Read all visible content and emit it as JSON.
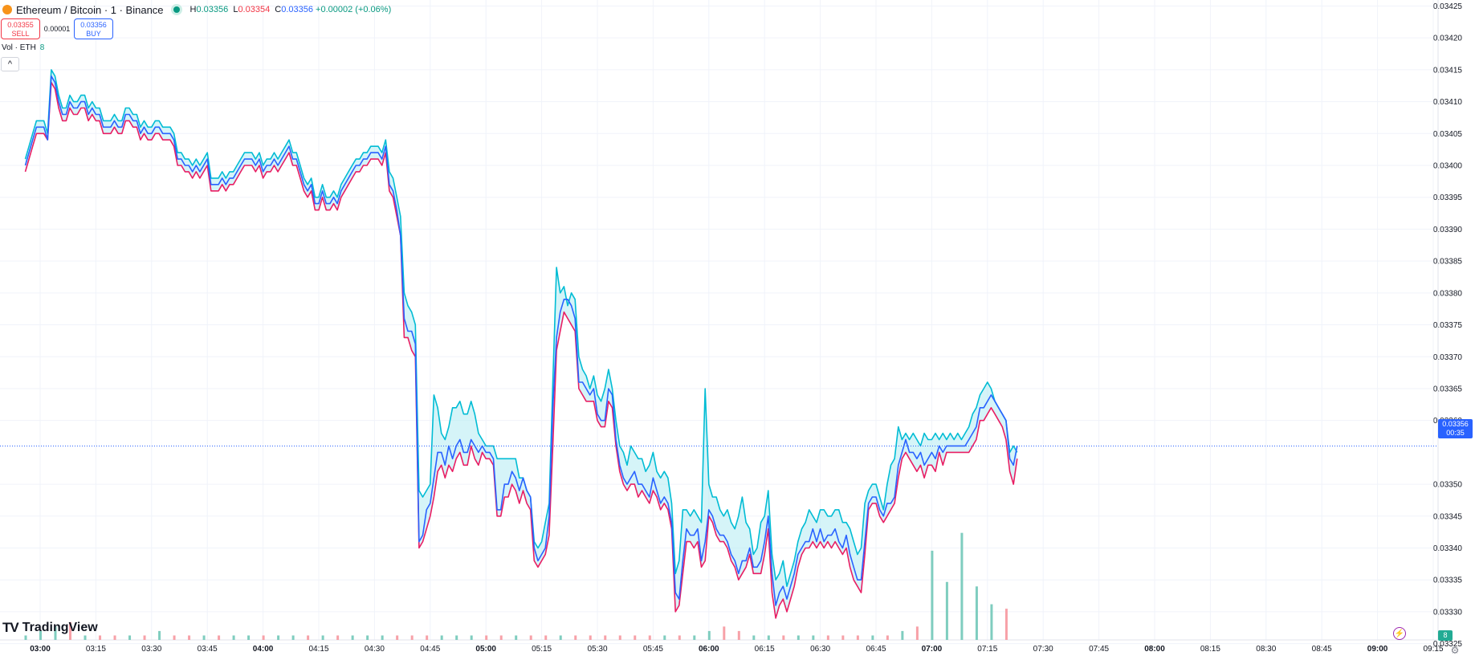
{
  "header": {
    "title": "Ethereum / Bitcoin · 1 · Binance",
    "ohlc": {
      "h_label": "H",
      "h_value": "0.03356",
      "l_label": "L",
      "l_value": "0.03354",
      "c_label": "C",
      "c_value": "0.03356",
      "change": "+0.00002 (+0.06%)"
    }
  },
  "trade": {
    "sell_price": "0.03355",
    "sell_label": "SELL",
    "spread": "0.00001",
    "buy_price": "0.03356",
    "buy_label": "BUY"
  },
  "volume_legend": {
    "label": "Vol · ETH",
    "value": "8"
  },
  "collapse_icon": "^",
  "logo_text": "TradingView",
  "price_tag": {
    "price": "0.03356",
    "countdown": "00:35"
  },
  "volume_tag": "8",
  "colors": {
    "up": "#089981",
    "down": "#f23645",
    "blue": "#2962ff",
    "cyan": "#00bcd4",
    "pink": "#e91e63",
    "vol_up": "#7fcdbf",
    "vol_down": "#f7a1a8"
  },
  "chart_data": {
    "type": "line",
    "series": [
      {
        "values": [
          0.034,
          0.03402,
          0.03404,
          0.03406,
          0.03406,
          0.03406,
          0.03404,
          0.03414,
          0.03413,
          0.0341,
          0.03408,
          0.03408,
          0.0341,
          0.03409,
          0.03409,
          0.0341,
          0.0341,
          0.03408,
          0.03409,
          0.03408,
          0.03408,
          0.03406,
          0.03406,
          0.03406,
          0.03407,
          0.03406,
          0.03406,
          0.03408,
          0.03408,
          0.03407,
          0.03407,
          0.03405,
          0.03406,
          0.03405,
          0.03405,
          0.03406,
          0.03406,
          0.03405,
          0.03405,
          0.03405,
          0.03404,
          0.03401,
          0.03401,
          0.034,
          0.034,
          0.03399,
          0.034,
          0.03399,
          0.034,
          0.03401,
          0.03397,
          0.03397,
          0.03397,
          0.03398,
          0.03397,
          0.03398,
          0.03398,
          0.03399,
          0.034,
          0.03401,
          0.03401,
          0.03401,
          0.034,
          0.03401,
          0.03399,
          0.034,
          0.034,
          0.03401,
          0.034,
          0.03401,
          0.03402,
          0.03403,
          0.03401,
          0.03401,
          0.03399,
          0.03397,
          0.03396,
          0.03397,
          0.03394,
          0.03394,
          0.03396,
          0.03394,
          0.03394,
          0.03395,
          0.03394,
          0.03396,
          0.03397,
          0.03398,
          0.03399,
          0.034,
          0.034,
          0.03401,
          0.03401,
          0.03402,
          0.03402,
          0.03402,
          0.03401,
          0.03403,
          0.03397,
          0.03396,
          0.03393,
          0.03389,
          0.03376,
          0.03374,
          0.03374,
          0.03372,
          0.03341,
          0.03342,
          0.03346,
          0.03347,
          0.03351,
          0.03355,
          0.03355,
          0.03353,
          0.03356,
          0.03354,
          0.03356,
          0.03357,
          0.03355,
          0.03355,
          0.03357,
          0.03356,
          0.03355,
          0.03356,
          0.03355,
          0.03355,
          0.03354,
          0.03346,
          0.03346,
          0.0335,
          0.0335,
          0.03352,
          0.03351,
          0.03349,
          0.03351,
          0.03349,
          0.03348,
          0.0334,
          0.03338,
          0.03339,
          0.0334,
          0.03345,
          0.03362,
          0.03373,
          0.03377,
          0.03379,
          0.03379,
          0.03378,
          0.03376,
          0.03366,
          0.03366,
          0.03365,
          0.03364,
          0.03365,
          0.03361,
          0.0336,
          0.0336,
          0.03365,
          0.03364,
          0.03357,
          0.03353,
          0.03351,
          0.0335,
          0.03351,
          0.03352,
          0.0335,
          0.0335,
          0.03349,
          0.03348,
          0.03351,
          0.03349,
          0.03347,
          0.03348,
          0.03347,
          0.03344,
          0.03333,
          0.03332,
          0.03338,
          0.03343,
          0.03342,
          0.03342,
          0.03343,
          0.03338,
          0.03341,
          0.03346,
          0.03345,
          0.03343,
          0.03342,
          0.03342,
          0.03341,
          0.03339,
          0.03338,
          0.03336,
          0.03338,
          0.03338,
          0.0334,
          0.03337,
          0.03337,
          0.03338,
          0.03341,
          0.03345,
          0.03336,
          0.03331,
          0.03333,
          0.03334,
          0.03332,
          0.03334,
          0.03336,
          0.03339,
          0.0334,
          0.03341,
          0.03341,
          0.03343,
          0.03341,
          0.03343,
          0.03341,
          0.03342,
          0.03342,
          0.03343,
          0.03341,
          0.0334,
          0.03342,
          0.03339,
          0.03337,
          0.03335,
          0.03335,
          0.03341,
          0.03347,
          0.03348,
          0.03348,
          0.03346,
          0.03345,
          0.03347,
          0.03347,
          0.03348,
          0.03353,
          0.03355,
          0.03357,
          0.03355,
          0.03355,
          0.03354,
          0.03355,
          0.03353,
          0.03354,
          0.03355,
          0.03354,
          0.03356,
          0.03355,
          0.03356,
          0.03356,
          0.03356,
          0.03356,
          0.03356,
          0.03356,
          0.03357,
          0.03358,
          0.03359,
          0.03362,
          0.03362,
          0.03363,
          0.03364,
          0.03363,
          0.03362,
          0.03361,
          0.0336,
          0.03354,
          0.03353,
          0.03356
        ],
        "color": "#2962ff"
      },
      {
        "values": [
          0.03401,
          0.03403,
          0.03405,
          0.03407,
          0.03407,
          0.03407,
          0.03405,
          0.03415,
          0.03414,
          0.03411,
          0.03409,
          0.03409,
          0.03411,
          0.0341,
          0.0341,
          0.03411,
          0.03411,
          0.03409,
          0.0341,
          0.03409,
          0.03409,
          0.03407,
          0.03407,
          0.03407,
          0.03408,
          0.03407,
          0.03407,
          0.03409,
          0.03409,
          0.03408,
          0.03408,
          0.03406,
          0.03407,
          0.03406,
          0.03406,
          0.03407,
          0.03407,
          0.03406,
          0.03406,
          0.03406,
          0.03405,
          0.03402,
          0.03402,
          0.03401,
          0.03401,
          0.034,
          0.03401,
          0.034,
          0.03401,
          0.03402,
          0.03398,
          0.03398,
          0.03398,
          0.03399,
          0.03398,
          0.03399,
          0.03399,
          0.034,
          0.03401,
          0.03402,
          0.03402,
          0.03402,
          0.03401,
          0.03402,
          0.034,
          0.03401,
          0.03401,
          0.03402,
          0.03401,
          0.03402,
          0.03403,
          0.03404,
          0.03402,
          0.03402,
          0.034,
          0.03398,
          0.03397,
          0.03398,
          0.03395,
          0.03395,
          0.03397,
          0.03395,
          0.03395,
          0.03396,
          0.03395,
          0.03397,
          0.03398,
          0.03399,
          0.034,
          0.03401,
          0.03401,
          0.03402,
          0.03402,
          0.03403,
          0.03403,
          0.03403,
          0.03402,
          0.03404,
          0.03399,
          0.03398,
          0.03395,
          0.03392,
          0.0338,
          0.03378,
          0.03377,
          0.03375,
          0.03349,
          0.03348,
          0.03349,
          0.0335,
          0.03364,
          0.03362,
          0.03358,
          0.03357,
          0.03359,
          0.03362,
          0.03362,
          0.03363,
          0.03361,
          0.03361,
          0.03363,
          0.03361,
          0.03358,
          0.03357,
          0.03356,
          0.03356,
          0.03356,
          0.03354,
          0.03354,
          0.03354,
          0.03354,
          0.03354,
          0.03354,
          0.03351,
          0.03351,
          0.03349,
          0.03348,
          0.03341,
          0.0334,
          0.03341,
          0.03344,
          0.03347,
          0.03366,
          0.03384,
          0.0338,
          0.03381,
          0.03378,
          0.0338,
          0.03379,
          0.0337,
          0.03368,
          0.03367,
          0.03365,
          0.03367,
          0.03364,
          0.03363,
          0.03365,
          0.03368,
          0.03365,
          0.0336,
          0.03356,
          0.03355,
          0.03353,
          0.03356,
          0.03355,
          0.03354,
          0.03354,
          0.03352,
          0.03353,
          0.03355,
          0.03352,
          0.03351,
          0.03352,
          0.03351,
          0.03347,
          0.03336,
          0.03338,
          0.03346,
          0.03346,
          0.03345,
          0.03346,
          0.03345,
          0.03344,
          0.03365,
          0.0335,
          0.03348,
          0.03348,
          0.03346,
          0.03345,
          0.03346,
          0.03344,
          0.03343,
          0.03345,
          0.03348,
          0.03344,
          0.03343,
          0.03339,
          0.0334,
          0.03344,
          0.03345,
          0.03349,
          0.03339,
          0.03335,
          0.03336,
          0.03338,
          0.03334,
          0.03336,
          0.03338,
          0.03341,
          0.03343,
          0.03344,
          0.03346,
          0.03345,
          0.03344,
          0.03346,
          0.03346,
          0.03345,
          0.03345,
          0.03346,
          0.03346,
          0.03344,
          0.03344,
          0.03343,
          0.03341,
          0.03339,
          0.0334,
          0.03347,
          0.03349,
          0.0335,
          0.0335,
          0.03348,
          0.03346,
          0.0335,
          0.03353,
          0.03354,
          0.03359,
          0.03357,
          0.03358,
          0.03357,
          0.03358,
          0.03357,
          0.03356,
          0.03358,
          0.03357,
          0.03357,
          0.03358,
          0.03357,
          0.03358,
          0.03357,
          0.03358,
          0.03357,
          0.03358,
          0.03357,
          0.03358,
          0.03359,
          0.03361,
          0.03362,
          0.03364,
          0.03365,
          0.03366,
          0.03365,
          0.03363,
          0.03362,
          0.03361,
          0.0336,
          0.03355,
          0.03356,
          0.03355
        ],
        "color": "#00bcd4"
      },
      {
        "values": [
          0.03399,
          0.03401,
          0.03403,
          0.03405,
          0.03405,
          0.03405,
          0.03404,
          0.03413,
          0.03412,
          0.03409,
          0.03407,
          0.03407,
          0.03409,
          0.03408,
          0.03408,
          0.03409,
          0.03409,
          0.03407,
          0.03408,
          0.03407,
          0.03407,
          0.03405,
          0.03405,
          0.03405,
          0.03406,
          0.03405,
          0.03405,
          0.03407,
          0.03407,
          0.03406,
          0.03406,
          0.03404,
          0.03405,
          0.03404,
          0.03404,
          0.03405,
          0.03405,
          0.03404,
          0.03404,
          0.03404,
          0.03403,
          0.034,
          0.034,
          0.03399,
          0.03399,
          0.03398,
          0.03399,
          0.03398,
          0.03399,
          0.034,
          0.03396,
          0.03396,
          0.03396,
          0.03397,
          0.03396,
          0.03397,
          0.03397,
          0.03398,
          0.03399,
          0.034,
          0.034,
          0.034,
          0.03399,
          0.034,
          0.03398,
          0.03399,
          0.03399,
          0.034,
          0.03399,
          0.034,
          0.03401,
          0.03402,
          0.034,
          0.034,
          0.03398,
          0.03396,
          0.03395,
          0.03396,
          0.03393,
          0.03393,
          0.03395,
          0.03393,
          0.03393,
          0.03394,
          0.03393,
          0.03395,
          0.03396,
          0.03397,
          0.03398,
          0.03399,
          0.03399,
          0.034,
          0.034,
          0.03401,
          0.03401,
          0.03401,
          0.034,
          0.03402,
          0.03396,
          0.03395,
          0.03392,
          0.03389,
          0.03373,
          0.03373,
          0.03371,
          0.0337,
          0.0334,
          0.03341,
          0.03343,
          0.03345,
          0.03348,
          0.03352,
          0.03353,
          0.03351,
          0.03353,
          0.03352,
          0.03354,
          0.03355,
          0.03353,
          0.03353,
          0.03356,
          0.03354,
          0.03353,
          0.03355,
          0.03354,
          0.03354,
          0.03353,
          0.03345,
          0.03345,
          0.03348,
          0.03348,
          0.0335,
          0.03349,
          0.03347,
          0.03349,
          0.03347,
          0.03346,
          0.03338,
          0.03337,
          0.03338,
          0.03339,
          0.03342,
          0.03356,
          0.03371,
          0.03374,
          0.03377,
          0.03376,
          0.03375,
          0.03374,
          0.03365,
          0.03364,
          0.03363,
          0.03363,
          0.03363,
          0.0336,
          0.03359,
          0.03359,
          0.03363,
          0.03362,
          0.03356,
          0.03352,
          0.0335,
          0.03349,
          0.0335,
          0.0335,
          0.03348,
          0.03349,
          0.03348,
          0.03347,
          0.03349,
          0.03348,
          0.03346,
          0.03347,
          0.03346,
          0.03343,
          0.0333,
          0.03331,
          0.03336,
          0.03341,
          0.03341,
          0.0334,
          0.03341,
          0.03337,
          0.03338,
          0.03345,
          0.03344,
          0.03342,
          0.03341,
          0.03341,
          0.0334,
          0.03338,
          0.03337,
          0.03335,
          0.03336,
          0.03337,
          0.03339,
          0.03336,
          0.03336,
          0.03336,
          0.03339,
          0.03343,
          0.03333,
          0.03329,
          0.03331,
          0.03332,
          0.0333,
          0.03332,
          0.03334,
          0.03337,
          0.03339,
          0.0334,
          0.0334,
          0.03341,
          0.0334,
          0.03341,
          0.0334,
          0.03341,
          0.0334,
          0.03341,
          0.0334,
          0.03339,
          0.0334,
          0.03337,
          0.03335,
          0.03334,
          0.03333,
          0.03339,
          0.03346,
          0.03347,
          0.03347,
          0.03345,
          0.03344,
          0.03345,
          0.03346,
          0.03347,
          0.03351,
          0.03354,
          0.03355,
          0.03354,
          0.03353,
          0.03352,
          0.03353,
          0.03351,
          0.03353,
          0.03353,
          0.03352,
          0.03355,
          0.03353,
          0.03355,
          0.03355,
          0.03355,
          0.03355,
          0.03355,
          0.03355,
          0.03355,
          0.03356,
          0.03357,
          0.0336,
          0.0336,
          0.03361,
          0.03362,
          0.03361,
          0.0336,
          0.03359,
          0.03357,
          0.03352,
          0.0335,
          0.03354
        ],
        "color": "#e91e63"
      }
    ],
    "volumes_every_4_min": [
      1,
      2,
      3,
      4,
      1,
      1,
      1,
      1,
      1,
      2,
      1,
      1,
      1,
      1,
      1,
      1,
      1,
      1,
      1,
      1,
      1,
      1,
      1,
      1,
      1,
      1,
      1,
      1,
      1,
      1,
      1,
      1,
      1,
      1,
      1,
      1,
      1,
      1,
      1,
      1,
      1,
      1,
      1,
      1,
      1,
      1,
      2,
      3,
      2,
      1,
      1,
      1,
      1,
      1,
      1,
      1,
      1,
      1,
      1,
      2,
      3,
      20,
      13,
      24,
      12,
      8,
      7,
      5,
      4,
      4,
      6,
      5,
      4,
      3,
      8,
      15,
      3,
      2,
      2,
      2,
      3,
      4,
      3,
      4,
      1,
      2,
      8,
      13,
      10,
      6,
      18,
      5,
      22,
      30,
      6,
      10,
      13,
      7,
      1,
      1,
      1,
      1,
      4,
      2,
      1,
      2,
      1,
      2,
      1,
      3,
      6,
      10,
      2,
      1,
      8,
      9,
      5,
      3,
      4,
      3,
      2,
      1,
      2,
      2,
      1,
      2,
      1,
      2,
      1,
      1,
      2,
      3,
      6,
      2,
      4,
      2,
      8,
      10,
      2,
      3,
      15,
      1,
      1,
      4,
      2,
      1,
      2,
      1,
      1,
      2,
      1,
      1,
      2,
      2,
      3,
      1,
      1,
      1,
      1,
      1,
      1,
      2,
      1,
      1,
      3,
      2,
      1,
      1,
      1,
      3,
      10,
      2,
      1,
      1,
      1,
      1,
      1,
      2,
      1,
      1,
      1,
      1,
      1,
      1,
      1,
      1,
      2,
      1,
      2,
      1,
      1,
      1,
      1,
      1,
      2,
      1,
      2,
      1,
      1,
      1,
      2,
      2,
      3,
      4,
      1,
      1,
      2,
      1,
      2,
      1,
      1,
      1,
      1,
      3,
      1,
      2,
      1,
      1,
      1,
      1,
      1,
      1,
      2,
      1,
      2,
      2,
      2,
      2,
      1,
      4,
      1,
      3,
      2,
      1,
      1,
      1,
      4,
      1,
      2,
      1,
      1,
      2,
      2,
      1,
      1,
      5
    ],
    "x_start": "02:56",
    "x_interval_min": 1,
    "x_ticks": [
      "03:00",
      "03:15",
      "03:30",
      "03:45",
      "04:00",
      "04:15",
      "04:30",
      "04:45",
      "05:00",
      "05:15",
      "05:30",
      "05:45",
      "06:00",
      "06:15",
      "06:30",
      "06:45",
      "07:00",
      "07:15",
      "07:30",
      "07:45",
      "08:00",
      "08:15",
      "08:30",
      "08:45",
      "09:00",
      "09:15"
    ],
    "y_ticks": [
      "0.03425",
      "0.03420",
      "0.03415",
      "0.03410",
      "0.03405",
      "0.03400",
      "0.03395",
      "0.03390",
      "0.03385",
      "0.03380",
      "0.03375",
      "0.03370",
      "0.03365",
      "0.03360",
      "0.03350",
      "0.03345",
      "0.03340",
      "0.03335",
      "0.03330",
      "0.03325"
    ],
    "ylim": [
      0.033225,
      0.03426
    ],
    "grid": true,
    "current_price": 0.03356
  }
}
